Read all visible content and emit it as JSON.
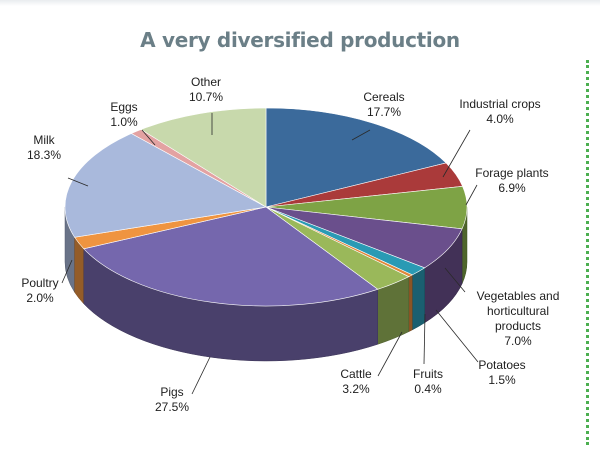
{
  "chart_data": {
    "type": "pie",
    "title": "A very diversified production",
    "slices": [
      {
        "label": "Cereals",
        "value": 17.7,
        "value_label": "17.7%",
        "color": "#3b6a9b"
      },
      {
        "label": "Industrial crops",
        "value": 4.0,
        "value_label": "4.0%",
        "color": "#aa3a3a"
      },
      {
        "label": "Forage plants",
        "value": 6.9,
        "value_label": "6.9%",
        "color": "#7ea345"
      },
      {
        "label": "Vegetables and horticultural products",
        "label_lines": [
          "Vegetables and",
          "horticultural",
          "products"
        ],
        "value": 7.0,
        "value_label": "7.0%",
        "color": "#6a4f8c"
      },
      {
        "label": "Potatoes",
        "value": 1.5,
        "value_label": "1.5%",
        "color": "#2a9ab4"
      },
      {
        "label": "Fruits",
        "value": 0.4,
        "value_label": "0.4%",
        "color": "#e0883a"
      },
      {
        "label": "Cattle",
        "value": 3.2,
        "value_label": "3.2%",
        "color": "#9ab85a"
      },
      {
        "label": "Pigs",
        "value": 27.5,
        "value_label": "27.5%",
        "color": "#7567ad"
      },
      {
        "label": "Poultry",
        "value": 2.0,
        "value_label": "2.0%",
        "color": "#ef9440"
      },
      {
        "label": "Milk",
        "value": 18.3,
        "value_label": "18.3%",
        "color": "#a9b9dc"
      },
      {
        "label": "Eggs",
        "value": 1.0,
        "value_label": "1.0%",
        "color": "#e3a2a2"
      },
      {
        "label": "Other",
        "value": 10.7,
        "value_label": "10.7%",
        "color": "#c8d9ac"
      }
    ],
    "legend": "none",
    "style": "3d-pie"
  }
}
